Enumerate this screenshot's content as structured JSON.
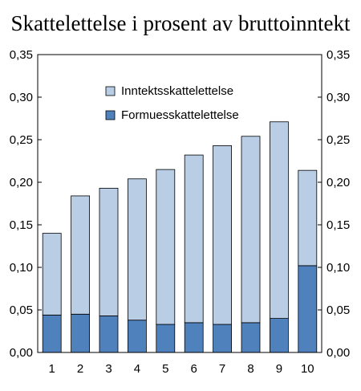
{
  "chart_data": {
    "type": "bar",
    "stacked": true,
    "title": "Skattelettelse i prosent av bruttoinntekt",
    "categories": [
      "1",
      "2",
      "3",
      "4",
      "5",
      "6",
      "7",
      "8",
      "9",
      "10"
    ],
    "series": [
      {
        "name": "Formuesskattelettelse",
        "color": "#4f81bd",
        "values": [
          0.044,
          0.045,
          0.043,
          0.038,
          0.033,
          0.035,
          0.033,
          0.035,
          0.04,
          0.102
        ]
      },
      {
        "name": "Inntektsskattelettelse",
        "color": "#b9cde5",
        "values": [
          0.096,
          0.139,
          0.15,
          0.166,
          0.182,
          0.197,
          0.21,
          0.219,
          0.231,
          0.112
        ]
      }
    ],
    "legend_order": [
      "Inntektsskattelettelse",
      "Formuesskattelettelse"
    ],
    "ylim": [
      0,
      0.35
    ],
    "yticks": [
      "0,00",
      "0,05",
      "0,10",
      "0,15",
      "0,20",
      "0,25",
      "0,30",
      "0,35"
    ],
    "grid": false,
    "legend_position": "top-center",
    "dual_y_axis": true
  }
}
